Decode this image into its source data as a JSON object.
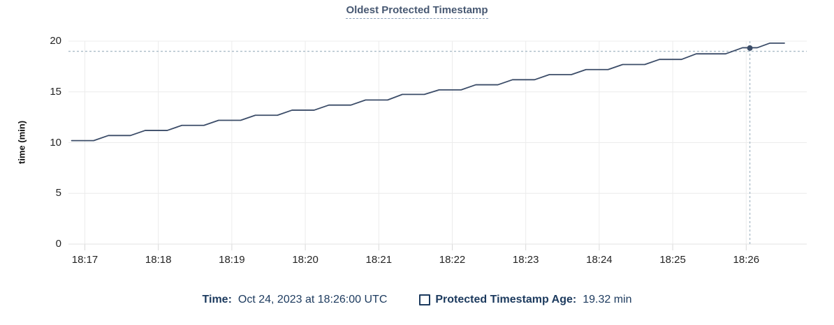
{
  "chart": {
    "title": "Oldest Protected Timestamp",
    "y_axis_title": "time (min)"
  },
  "legend": {
    "time_label": "Time:",
    "time_value": "Oct 24, 2023 at 18:26:00 UTC",
    "series_label": "Protected Timestamp Age:",
    "series_value": "19.32 min"
  },
  "colors": {
    "title": "#475872",
    "title_underline": "#8aa0b8",
    "series_line": "#3b4c68",
    "legend_text": "#1c3a5e",
    "grid_line": "#ececec",
    "baseline": "#e3e3e3",
    "axis_tick": "#d9d9d9",
    "axis_label_text": "#242424",
    "crosshair": "#a9bbc7",
    "hover_dot": "#3b4c68"
  },
  "chart_data": {
    "type": "line",
    "title": "Oldest Protected Timestamp",
    "xlabel": "",
    "ylabel": "time (min)",
    "grid": true,
    "legend_position": "bottom",
    "ylim": [
      0,
      20
    ],
    "y_ticks": [
      0,
      5,
      10,
      15,
      20
    ],
    "x_tick_labels": [
      "18:17",
      "18:18",
      "18:19",
      "18:20",
      "18:21",
      "18:22",
      "18:23",
      "18:24",
      "18:25",
      "18:26"
    ],
    "x_tick_offsets_min": [
      0,
      1,
      2,
      3,
      4,
      5,
      6,
      7,
      8,
      9
    ],
    "xlim_min_offset": [
      -0.22,
      9.82
    ],
    "series": [
      {
        "name": "Protected Timestamp Age",
        "unit": "min",
        "shape": "staircase-ramp",
        "points_min_offset_value": [
          [
            -0.18,
            10.2
          ],
          [
            0.12,
            10.2
          ],
          [
            0.32,
            10.7
          ],
          [
            0.62,
            10.7
          ],
          [
            0.82,
            11.2
          ],
          [
            1.12,
            11.2
          ],
          [
            1.32,
            11.7
          ],
          [
            1.62,
            11.7
          ],
          [
            1.82,
            12.2
          ],
          [
            2.12,
            12.2
          ],
          [
            2.32,
            12.7
          ],
          [
            2.62,
            12.7
          ],
          [
            2.82,
            13.2
          ],
          [
            3.12,
            13.2
          ],
          [
            3.32,
            13.7
          ],
          [
            3.62,
            13.7
          ],
          [
            3.82,
            14.2
          ],
          [
            4.12,
            14.2
          ],
          [
            4.32,
            14.75
          ],
          [
            4.62,
            14.75
          ],
          [
            4.82,
            15.2
          ],
          [
            5.12,
            15.2
          ],
          [
            5.32,
            15.7
          ],
          [
            5.62,
            15.7
          ],
          [
            5.82,
            16.2
          ],
          [
            6.12,
            16.2
          ],
          [
            6.32,
            16.7
          ],
          [
            6.62,
            16.7
          ],
          [
            6.82,
            17.2
          ],
          [
            7.12,
            17.2
          ],
          [
            7.32,
            17.7
          ],
          [
            7.62,
            17.7
          ],
          [
            7.82,
            18.2
          ],
          [
            8.12,
            18.2
          ],
          [
            8.32,
            18.75
          ],
          [
            8.72,
            18.75
          ],
          [
            8.95,
            19.35
          ],
          [
            9.15,
            19.35
          ],
          [
            9.32,
            19.8
          ],
          [
            9.52,
            19.8
          ]
        ]
      }
    ],
    "hover": {
      "time": "Oct 24, 2023 at 18:26:00 UTC",
      "value_min": 19.32,
      "hline_value_min": 19.0
    }
  }
}
